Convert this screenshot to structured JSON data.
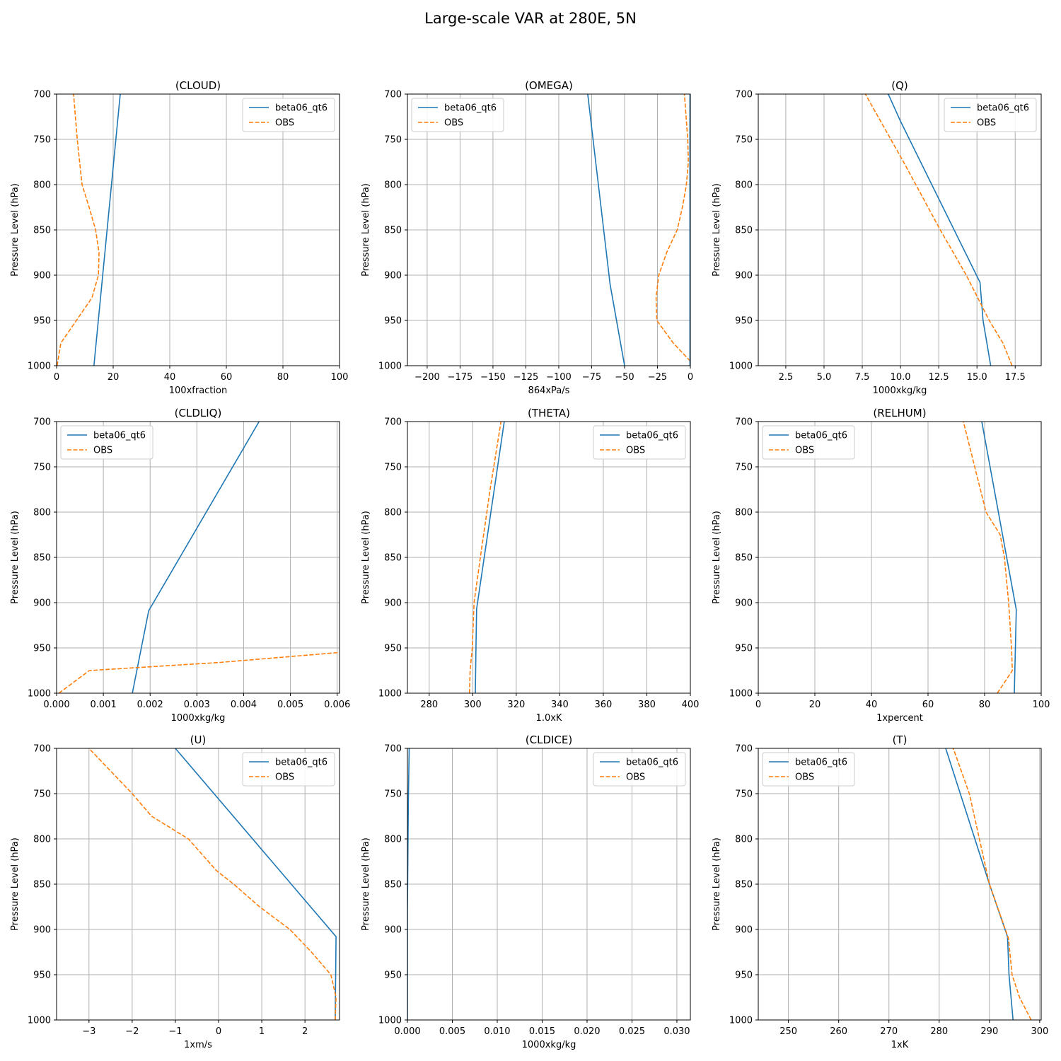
{
  "figure": {
    "title": "Large-scale VAR at 280E, 5N",
    "colors": {
      "model": "#1f77b4",
      "obs": "#ff7f0e",
      "grid": "#b0b0b0"
    }
  },
  "chart_data": [
    {
      "type": "line",
      "title": "(CLOUD)",
      "xlabel": "100xfraction",
      "ylabel": "Pressure Level (hPa)",
      "xlim": [
        0,
        100
      ],
      "ylim": [
        1000,
        700
      ],
      "xticks": [
        0,
        20,
        40,
        60,
        80,
        100
      ],
      "xtick_labels": [
        "0",
        "20",
        "40",
        "60",
        "80",
        "100"
      ],
      "yticks": [
        700,
        750,
        800,
        850,
        900,
        950,
        1000
      ],
      "grid": true,
      "legend": "upper right",
      "series": [
        {
          "name": "beta06_qt6",
          "style": "solid",
          "color": "#1f77b4",
          "x": [
            13.2,
            22.5
          ],
          "y": [
            1000,
            700
          ]
        },
        {
          "name": "OBS",
          "style": "dashed",
          "color": "#ff7f0e",
          "x": [
            0.2,
            1.5,
            7,
            12.5,
            14.8,
            15.0,
            13.8,
            11.5,
            9.0,
            7.3,
            6.0
          ],
          "y": [
            1000,
            975,
            950,
            925,
            900,
            875,
            850,
            825,
            800,
            750,
            700
          ]
        }
      ]
    },
    {
      "type": "line",
      "title": "(OMEGA)",
      "xlabel": "864xPa/s",
      "ylabel": "Pressure Level (hPa)",
      "xlim": [
        -215,
        0
      ],
      "ylim": [
        1000,
        700
      ],
      "xticks": [
        -200,
        -175,
        -150,
        -125,
        -100,
        -75,
        -50,
        -25,
        0
      ],
      "xtick_labels": [
        "−200",
        "−175",
        "−150",
        "−125",
        "−100",
        "−75",
        "−50",
        "−25",
        "0"
      ],
      "yticks": [
        700,
        750,
        800,
        850,
        900,
        950,
        1000
      ],
      "grid": true,
      "legend": "upper left",
      "series": [
        {
          "name": "beta06_qt6",
          "style": "solid",
          "color": "#1f77b4",
          "x": [
            -50,
            -61,
            -78
          ],
          "y": [
            1000,
            910,
            700
          ]
        },
        {
          "name": "OBS",
          "style": "dashed",
          "color": "#ff7f0e",
          "x": [
            0,
            -13,
            -25.5,
            -26,
            -24,
            -18,
            -10,
            -6,
            -3,
            -1.5,
            -2,
            -4.5
          ],
          "y": [
            995,
            975,
            950,
            925,
            900,
            875,
            850,
            825,
            800,
            775,
            750,
            700
          ]
        },
        {
          "name": "",
          "style": "solid",
          "color": "#1f77b4",
          "x": [
            -0.3,
            -0.3
          ],
          "y": [
            1000,
            700
          ]
        }
      ]
    },
    {
      "type": "line",
      "title": "(Q)",
      "xlabel": "1000xkg/kg",
      "ylabel": "Pressure Level (hPa)",
      "xlim": [
        0.7,
        19.2
      ],
      "ylim": [
        1000,
        700
      ],
      "xticks": [
        2.5,
        5,
        7.5,
        10,
        12.5,
        15,
        17.5
      ],
      "xtick_labels": [
        "2.5",
        "5.0",
        "7.5",
        "10.0",
        "12.5",
        "15.0",
        "17.5"
      ],
      "yticks": [
        700,
        750,
        800,
        850,
        900,
        950,
        1000
      ],
      "grid": true,
      "legend": "upper right",
      "series": [
        {
          "name": "beta06_qt6",
          "style": "solid",
          "color": "#1f77b4",
          "x": [
            15.9,
            15.4,
            15.2,
            10.0,
            9.2
          ],
          "y": [
            1000,
            950,
            908,
            730,
            700
          ]
        },
        {
          "name": "OBS",
          "style": "dashed",
          "color": "#ff7f0e",
          "x": [
            17.3,
            16.7,
            15.8,
            14.3,
            12.6,
            10.2,
            7.7
          ],
          "y": [
            1000,
            975,
            950,
            900,
            850,
            775,
            700
          ]
        }
      ]
    },
    {
      "type": "line",
      "title": "(CLDLIQ)",
      "xlabel": "1000xkg/kg",
      "ylabel": "Pressure Level (hPa)",
      "xlim": [
        0,
        0.00605
      ],
      "ylim": [
        1000,
        700
      ],
      "xticks": [
        0,
        0.001,
        0.002,
        0.003,
        0.004,
        0.005,
        0.006
      ],
      "xtick_labels": [
        "0.000",
        "0.001",
        "0.002",
        "0.003",
        "0.004",
        "0.005",
        "0.006"
      ],
      "yticks": [
        700,
        750,
        800,
        850,
        900,
        950,
        1000
      ],
      "grid": true,
      "legend": "upper left",
      "series": [
        {
          "name": "beta06_qt6",
          "style": "solid",
          "color": "#1f77b4",
          "x": [
            0.00162,
            0.00197,
            0.00433
          ],
          "y": [
            1000,
            909,
            700
          ]
        },
        {
          "name": "OBS",
          "style": "dashed",
          "color": "#ff7f0e",
          "x": [
            5e-05,
            0.0007,
            0.0035,
            0.00605
          ],
          "y": [
            1000,
            975,
            966,
            955
          ]
        }
      ]
    },
    {
      "type": "line",
      "title": "(THETA)",
      "xlabel": "1.0xK",
      "ylabel": "Pressure Level (hPa)",
      "xlim": [
        270,
        400
      ],
      "ylim": [
        1000,
        700
      ],
      "xticks": [
        280,
        300,
        320,
        340,
        360,
        380,
        400
      ],
      "xtick_labels": [
        "280",
        "300",
        "320",
        "340",
        "360",
        "380",
        "400"
      ],
      "yticks": [
        700,
        750,
        800,
        850,
        900,
        950,
        1000
      ],
      "grid": true,
      "legend": "upper right",
      "series": [
        {
          "name": "beta06_qt6",
          "style": "solid",
          "color": "#1f77b4",
          "x": [
            301.2,
            301.5,
            301.8,
            314.5
          ],
          "y": [
            1000,
            950,
            907,
            700
          ]
        },
        {
          "name": "OBS",
          "style": "dashed",
          "color": "#ff7f0e",
          "x": [
            298.5,
            298.8,
            299.8,
            300.6,
            303.5,
            308.0,
            313.0
          ],
          "y": [
            1000,
            975,
            950,
            900,
            850,
            775,
            700
          ]
        }
      ]
    },
    {
      "type": "line",
      "title": "(RELHUM)",
      "xlabel": "1xpercent",
      "ylabel": "Pressure Level (hPa)",
      "xlim": [
        0,
        100
      ],
      "ylim": [
        1000,
        700
      ],
      "xticks": [
        0,
        20,
        40,
        60,
        80,
        100
      ],
      "xtick_labels": [
        "0",
        "20",
        "40",
        "60",
        "80",
        "100"
      ],
      "yticks": [
        700,
        750,
        800,
        850,
        900,
        950,
        1000
      ],
      "grid": true,
      "legend": "upper left",
      "series": [
        {
          "name": "beta06_qt6",
          "style": "solid",
          "color": "#1f77b4",
          "x": [
            90.5,
            91.2,
            79.0
          ],
          "y": [
            1000,
            908,
            700
          ]
        },
        {
          "name": "OBS",
          "style": "dashed",
          "color": "#ff7f0e",
          "x": [
            84.5,
            89.8,
            89.5,
            88.5,
            87.0,
            85.5,
            80.5,
            76.5,
            72.5
          ],
          "y": [
            1000,
            975,
            950,
            900,
            850,
            825,
            800,
            750,
            700
          ]
        }
      ]
    },
    {
      "type": "line",
      "title": "(U)",
      "xlabel": "1xm/s",
      "ylabel": "Pressure Level (hPa)",
      "xlim": [
        -3.75,
        2.8
      ],
      "ylim": [
        1000,
        700
      ],
      "xticks": [
        -3,
        -2,
        -1,
        0,
        1,
        2
      ],
      "xtick_labels": [
        "−3",
        "−2",
        "−1",
        "0",
        "1",
        "2"
      ],
      "yticks": [
        700,
        750,
        800,
        850,
        900,
        950,
        1000
      ],
      "grid": true,
      "legend": "upper right",
      "series": [
        {
          "name": "beta06_qt6",
          "style": "solid",
          "color": "#1f77b4",
          "x": [
            2.7,
            2.72,
            -1.0
          ],
          "y": [
            1000,
            908,
            700
          ]
        },
        {
          "name": "OBS",
          "style": "dashed",
          "color": "#ff7f0e",
          "x": [
            2.7,
            2.72,
            2.6,
            2.15,
            1.65,
            0.95,
            0.35,
            -0.05,
            -0.7,
            -1.55,
            -2.0,
            -3.0
          ],
          "y": [
            1000,
            975,
            950,
            925,
            900,
            875,
            850,
            835,
            800,
            775,
            750,
            700
          ]
        }
      ]
    },
    {
      "type": "line",
      "title": "(CLDICE)",
      "xlabel": "1000xkg/kg",
      "ylabel": "Pressure Level (hPa)",
      "xlim": [
        0,
        0.0315
      ],
      "ylim": [
        1000,
        700
      ],
      "xticks": [
        0,
        0.005,
        0.01,
        0.015,
        0.02,
        0.025,
        0.03
      ],
      "xtick_labels": [
        "0.000",
        "0.005",
        "0.010",
        "0.015",
        "0.020",
        "0.025",
        "0.030"
      ],
      "yticks": [
        700,
        750,
        800,
        850,
        900,
        950,
        1000
      ],
      "grid": true,
      "legend": "upper right",
      "series": [
        {
          "name": "beta06_qt6",
          "style": "solid",
          "color": "#1f77b4",
          "x": [
            0,
            0,
            0.0001,
            0.0002
          ],
          "y": [
            1000,
            880,
            760,
            700
          ]
        },
        {
          "name": "OBS",
          "style": "dashed",
          "color": "#ff7f0e",
          "x": [],
          "y": []
        }
      ]
    },
    {
      "type": "line",
      "title": "(T)",
      "xlabel": "1xK",
      "ylabel": "Pressure Level (hPa)",
      "xlim": [
        244,
        300.3
      ],
      "ylim": [
        1000,
        700
      ],
      "xticks": [
        250,
        260,
        270,
        280,
        290,
        300
      ],
      "xtick_labels": [
        "250",
        "260",
        "270",
        "280",
        "290",
        "300"
      ],
      "yticks": [
        700,
        750,
        800,
        850,
        900,
        950,
        1000
      ],
      "grid": true,
      "legend": "upper left",
      "series": [
        {
          "name": "beta06_qt6",
          "style": "solid",
          "color": "#1f77b4",
          "x": [
            294.7,
            293.9,
            293.6,
            290.0,
            281.3
          ],
          "y": [
            1000,
            950,
            908,
            850,
            700
          ]
        },
        {
          "name": "OBS",
          "style": "dashed",
          "color": "#ff7f0e",
          "x": [
            298.3,
            296.0,
            294.5,
            293.8,
            290.0,
            286.0,
            282.8
          ],
          "y": [
            1000,
            975,
            950,
            910,
            850,
            750,
            700
          ]
        }
      ]
    }
  ]
}
